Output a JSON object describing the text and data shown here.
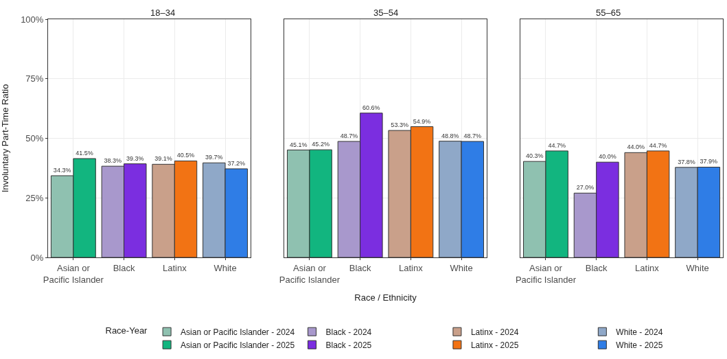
{
  "chart_data": [
    {
      "type": "bar",
      "title": "18–34",
      "ylabel": "Involuntary Part-Time Ratio",
      "categories": [
        "Asian or\nPacific Islander",
        "Black",
        "Latinx",
        "White"
      ],
      "ylim": [
        0,
        100
      ],
      "yticks": [
        {
          "value": 0,
          "label": "0%"
        },
        {
          "value": 25,
          "label": "25%"
        },
        {
          "value": 50,
          "label": "50%"
        },
        {
          "value": 75,
          "label": "75%"
        },
        {
          "value": 100,
          "label": "100%"
        }
      ],
      "grid": true,
      "legend": "bottom",
      "legend_title": "Race-Year",
      "series": [
        {
          "name": "Asian or Pacific Islander - 2024",
          "color": "#8fc1b0",
          "values": [
            34.3,
            null,
            null,
            null
          ],
          "value_labels": [
            "34.3%",
            null,
            null,
            null
          ]
        },
        {
          "name": "Asian or Pacific Islander - 2025",
          "color": "#12b57f",
          "values": [
            41.5,
            null,
            null,
            null
          ],
          "value_labels": [
            "41.5%",
            null,
            null,
            null
          ]
        },
        {
          "name": "Black - 2024",
          "color": "#a898cc",
          "values": [
            null,
            38.3,
            null,
            null
          ],
          "value_labels": [
            null,
            "38.3%",
            null,
            null
          ]
        },
        {
          "name": "Black - 2025",
          "color": "#7b2ee0",
          "values": [
            null,
            39.3,
            null,
            null
          ],
          "value_labels": [
            null,
            "39.3%",
            null,
            null
          ]
        },
        {
          "name": "Latinx - 2024",
          "color": "#c9a08a",
          "values": [
            null,
            null,
            39.1,
            null
          ],
          "value_labels": [
            null,
            null,
            "39.1%",
            null
          ]
        },
        {
          "name": "Latinx - 2025",
          "color": "#f27314",
          "values": [
            null,
            null,
            40.5,
            null
          ],
          "value_labels": [
            null,
            null,
            "40.5%",
            null
          ]
        },
        {
          "name": "White - 2024",
          "color": "#8fa8c8",
          "values": [
            null,
            null,
            null,
            39.7
          ],
          "value_labels": [
            null,
            null,
            null,
            "39.7%"
          ]
        },
        {
          "name": "White - 2025",
          "color": "#2f7de6",
          "values": [
            null,
            null,
            null,
            37.2
          ],
          "value_labels": [
            null,
            null,
            null,
            "37.2%"
          ]
        }
      ]
    },
    {
      "type": "bar",
      "title": "35–54",
      "xlabel": "Race / Ethnicity",
      "categories": [
        "Asian or\nPacific Islander",
        "Black",
        "Latinx",
        "White"
      ],
      "ylim": [
        0,
        100
      ],
      "yticks": [
        0,
        25,
        50,
        75,
        100
      ],
      "grid": true,
      "tick_labels": "x",
      "series": [
        {
          "color": "#8fc1b0",
          "values": [
            45.1,
            null,
            null,
            null
          ],
          "value_labels": [
            "45.1%",
            null,
            null,
            null
          ]
        },
        {
          "color": "#12b57f",
          "values": [
            45.2,
            null,
            null,
            null
          ],
          "value_labels": [
            "45.2%",
            null,
            null,
            null
          ]
        },
        {
          "color": "#a898cc",
          "values": [
            null,
            48.7,
            null,
            null
          ],
          "value_labels": [
            null,
            "48.7%",
            null,
            null
          ]
        },
        {
          "color": "#7b2ee0",
          "values": [
            null,
            60.6,
            null,
            null
          ],
          "value_labels": [
            null,
            "60.6%",
            null,
            null
          ]
        },
        {
          "color": "#c9a08a",
          "values": [
            null,
            null,
            53.3,
            null
          ],
          "value_labels": [
            null,
            null,
            "53.3%",
            null
          ]
        },
        {
          "color": "#f27314",
          "values": [
            null,
            null,
            54.9,
            null
          ],
          "value_labels": [
            null,
            null,
            "54.9%",
            null
          ]
        },
        {
          "color": "#8fa8c8",
          "values": [
            null,
            null,
            null,
            48.8
          ],
          "value_labels": [
            null,
            null,
            null,
            "48.8%"
          ]
        },
        {
          "color": "#2f7de6",
          "values": [
            null,
            null,
            null,
            48.7
          ],
          "value_labels": [
            null,
            null,
            null,
            "48.7%"
          ]
        }
      ]
    },
    {
      "type": "bar",
      "title": "55–65",
      "categories": [
        "Asian or\nPacific Islander",
        "Black",
        "Latinx",
        "White"
      ],
      "ylim": [
        0,
        100
      ],
      "yticks": [
        0,
        25,
        50,
        75,
        100
      ],
      "grid": true,
      "tick_labels": "x",
      "series": [
        {
          "color": "#8fc1b0",
          "values": [
            40.3,
            null,
            null,
            null
          ],
          "value_labels": [
            "40.3%",
            null,
            null,
            null
          ]
        },
        {
          "color": "#12b57f",
          "values": [
            44.7,
            null,
            null,
            null
          ],
          "value_labels": [
            "44.7%",
            null,
            null,
            null
          ]
        },
        {
          "color": "#a898cc",
          "values": [
            null,
            27.0,
            null,
            null
          ],
          "value_labels": [
            null,
            "27.0%",
            null,
            null
          ]
        },
        {
          "color": "#7b2ee0",
          "values": [
            null,
            40.0,
            null,
            null
          ],
          "value_labels": [
            null,
            "40.0%",
            null,
            null
          ]
        },
        {
          "color": "#c9a08a",
          "values": [
            null,
            null,
            44.0,
            null
          ],
          "value_labels": [
            null,
            null,
            "44.0%",
            null
          ]
        },
        {
          "color": "#f27314",
          "values": [
            null,
            null,
            44.7,
            null
          ],
          "value_labels": [
            null,
            null,
            "44.7%",
            null
          ]
        },
        {
          "color": "#8fa8c8",
          "values": [
            null,
            null,
            null,
            37.8
          ],
          "value_labels": [
            null,
            null,
            null,
            "37.8%"
          ]
        },
        {
          "color": "#2f7de6",
          "values": [
            null,
            null,
            null,
            37.9
          ],
          "value_labels": [
            null,
            null,
            null,
            "37.9%"
          ]
        }
      ]
    }
  ]
}
